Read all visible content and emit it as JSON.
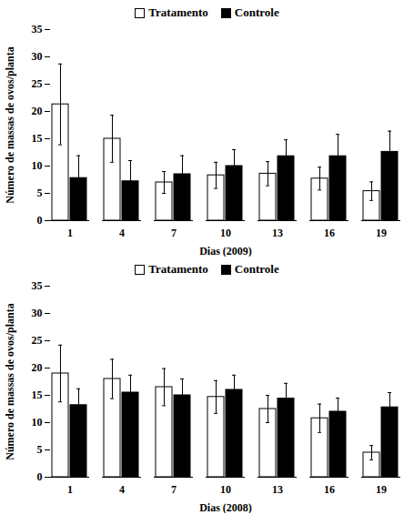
{
  "chart_data": [
    {
      "type": "bar",
      "x_label": "Dias (2009)",
      "y_label": "Número de massas de ovos/planta",
      "categories": [
        1,
        4,
        7,
        10,
        13,
        16,
        19
      ],
      "series": [
        {
          "name": "Tratamento",
          "color": "#ffffff",
          "values": [
            21.3,
            15,
            7,
            8.3,
            8.6,
            7.7,
            5.4
          ],
          "errors": [
            7.4,
            4.3,
            2,
            2.4,
            2.2,
            2.1,
            1.7
          ]
        },
        {
          "name": "Controle",
          "color": "#000000",
          "values": [
            7.8,
            7.2,
            8.5,
            10,
            11.8,
            11.8,
            12.6
          ],
          "errors": [
            4.1,
            3.8,
            3.4,
            3,
            3,
            4,
            3.8
          ]
        }
      ],
      "ylim": [
        0,
        35
      ],
      "yticks": [
        0,
        5,
        10,
        15,
        20,
        25,
        30,
        35
      ],
      "legend": "top"
    },
    {
      "type": "bar",
      "x_label": "Dias (2008)",
      "y_label": "Número de massas de ovos/planta",
      "categories": [
        1,
        4,
        7,
        10,
        13,
        16,
        19
      ],
      "series": [
        {
          "name": "Tratamento",
          "color": "#ffffff",
          "values": [
            19,
            18,
            16.5,
            14.7,
            12.5,
            10.8,
            4.5
          ],
          "errors": [
            5.2,
            3.6,
            3.4,
            3,
            2.5,
            2.6,
            1.3
          ]
        },
        {
          "name": "Controle",
          "color": "#000000",
          "values": [
            13.2,
            15.5,
            15,
            16,
            14.4,
            12,
            12.8
          ],
          "errors": [
            3,
            3.2,
            3,
            2.7,
            2.8,
            2.5,
            2.7
          ]
        }
      ],
      "ylim": [
        0,
        35
      ],
      "yticks": [
        0,
        5,
        10,
        15,
        20,
        25,
        30,
        35
      ],
      "legend": "top"
    }
  ]
}
